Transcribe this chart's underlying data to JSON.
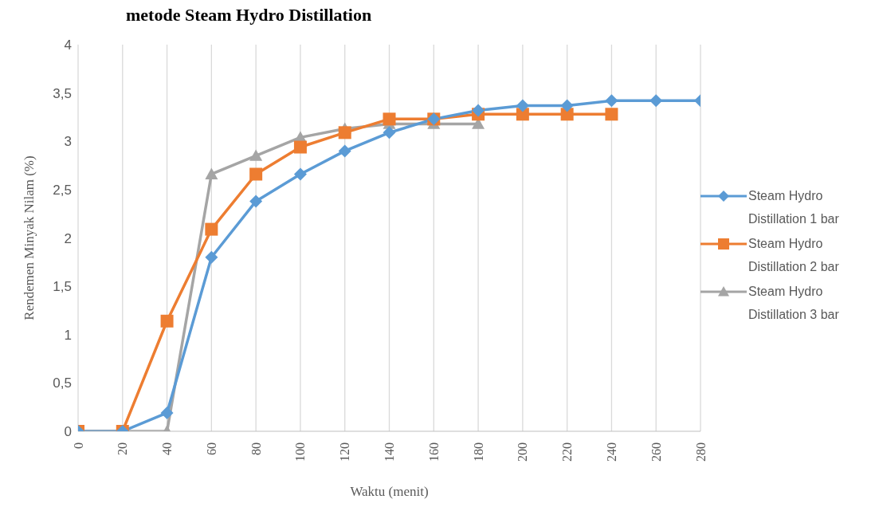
{
  "chart_data": {
    "type": "line",
    "xlabel": "Waktu (menit)",
    "ylabel": "Rendemen Minyak Nilam (%)",
    "annotations": [
      "metode Steam Hydro Distillation"
    ],
    "x": [
      0,
      20,
      40,
      60,
      80,
      100,
      120,
      140,
      160,
      180,
      200,
      220,
      240,
      260,
      280
    ],
    "xlim": [
      0,
      280
    ],
    "xticks": [
      0,
      20,
      40,
      60,
      80,
      100,
      120,
      140,
      160,
      180,
      200,
      220,
      240,
      260,
      280
    ],
    "ylim": [
      0,
      4
    ],
    "yticks": [
      {
        "value": 0,
        "label": "0"
      },
      {
        "value": 0.5,
        "label": "0,5"
      },
      {
        "value": 1,
        "label": "1"
      },
      {
        "value": 1.5,
        "label": "1,5"
      },
      {
        "value": 2,
        "label": "2"
      },
      {
        "value": 2.5,
        "label": "2,5"
      },
      {
        "value": 3,
        "label": "3"
      },
      {
        "value": 3.5,
        "label": "3,5"
      },
      {
        "value": 4,
        "label": "4"
      }
    ],
    "grid": "x",
    "legend": "right",
    "series": [
      {
        "name": "Steam Hydro Distillation 1 bar",
        "color": "#5b9bd5",
        "marker": "diamond",
        "values": [
          0,
          0,
          0.19,
          1.8,
          2.38,
          2.66,
          2.9,
          3.09,
          3.23,
          3.32,
          3.37,
          3.37,
          3.42,
          3.42,
          3.42
        ]
      },
      {
        "name": "Steam Hydro Distillation 2 bar",
        "color": "#ed7d31",
        "marker": "square",
        "x": [
          0,
          20,
          40,
          60,
          80,
          100,
          120,
          140,
          160,
          180,
          200,
          220,
          240
        ],
        "values": [
          0,
          0,
          1.14,
          2.09,
          2.66,
          2.94,
          3.09,
          3.23,
          3.23,
          3.28,
          3.28,
          3.28,
          3.28
        ]
      },
      {
        "name": "Steam Hydro Distillation 3 bar",
        "color": "#a5a5a5",
        "marker": "triangle",
        "x": [
          0,
          20,
          40,
          60,
          80,
          100,
          120,
          140,
          160,
          180
        ],
        "values": [
          0,
          0,
          0,
          2.66,
          2.85,
          3.04,
          3.13,
          3.18,
          3.18,
          3.18
        ]
      }
    ]
  }
}
